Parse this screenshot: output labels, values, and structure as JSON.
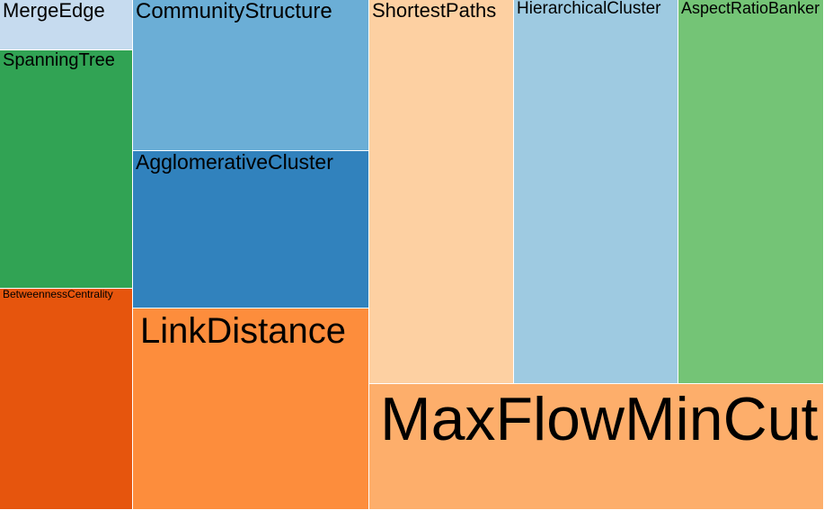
{
  "chart_data": {
    "type": "treemap",
    "title": "",
    "items": [
      {
        "name": "MergeEdge",
        "value": 1.0,
        "color": "#c6dbef"
      },
      {
        "name": "SpanningTree",
        "value": 5.1,
        "color": "#31a354"
      },
      {
        "name": "BetweennessCentrality",
        "value": 4.8,
        "color": "#e6550d"
      },
      {
        "name": "CommunityStructure",
        "value": 4.2,
        "color": "#6baed6"
      },
      {
        "name": "AgglomerativeCluster",
        "value": 4.4,
        "color": "#3182bd"
      },
      {
        "name": "LinkDistance",
        "value": 5.8,
        "color": "#fd8d3c"
      },
      {
        "name": "ShortestPaths",
        "value": 6.6,
        "color": "#fdd0a2"
      },
      {
        "name": "HierarchicalCluster",
        "value": 7.4,
        "color": "#9ecae1"
      },
      {
        "name": "AspectRatioBanker",
        "value": 6.9,
        "color": "#74c476"
      },
      {
        "name": "MaxFlowMinCut",
        "value": 7.5,
        "color": "#fdae6b"
      }
    ]
  }
}
